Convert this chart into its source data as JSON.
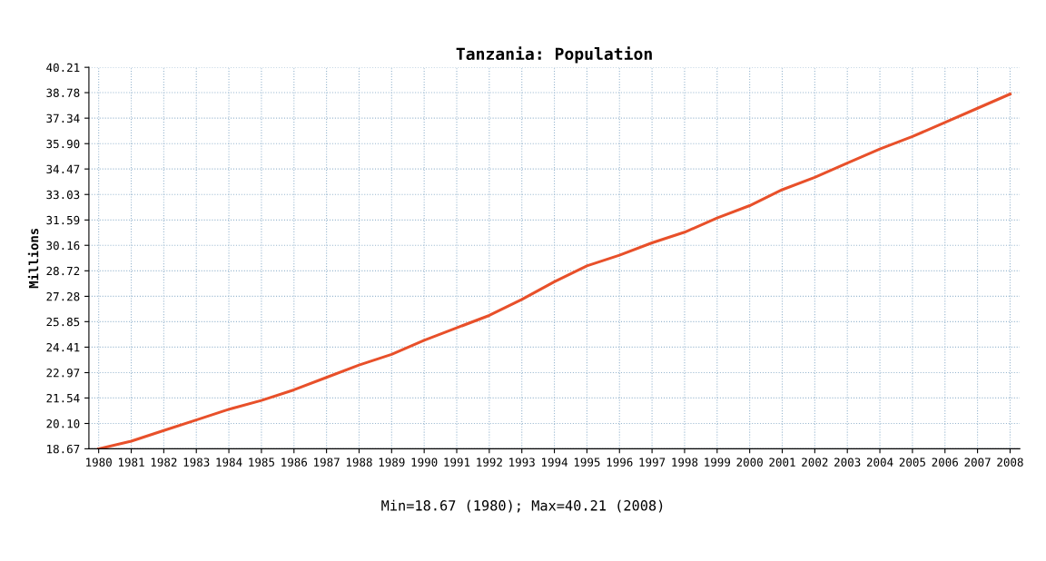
{
  "chart_data": {
    "type": "line",
    "title": "Tanzania: Population",
    "ylabel": "Millions",
    "categories": [
      "1980",
      "1981",
      "1982",
      "1983",
      "1984",
      "1985",
      "1986",
      "1987",
      "1988",
      "1989",
      "1990",
      "1991",
      "1992",
      "1993",
      "1994",
      "1995",
      "1996",
      "1997",
      "1998",
      "1999",
      "2000",
      "2001",
      "2002",
      "2003",
      "2004",
      "2005",
      "2006",
      "2007",
      "2008"
    ],
    "series": [
      {
        "color": "#e8502a",
        "values": [
          18.67,
          19.1,
          19.7,
          20.3,
          20.9,
          21.4,
          22.0,
          22.7,
          23.4,
          24.0,
          24.8,
          25.5,
          26.2,
          27.1,
          28.1,
          29.0,
          29.6,
          30.3,
          30.9,
          31.7,
          32.4,
          33.3,
          34.0,
          34.8,
          35.6,
          36.3,
          37.1,
          37.9,
          38.7
        ]
      }
    ],
    "ylim": [
      18.67,
      40.21
    ],
    "yticks": [
      {
        "value": 18.67,
        "label": "18.67"
      },
      {
        "value": 20.1,
        "label": "20.10"
      },
      {
        "value": 21.54,
        "label": "21.54"
      },
      {
        "value": 22.97,
        "label": "22.97"
      },
      {
        "value": 24.41,
        "label": "24.41"
      },
      {
        "value": 25.85,
        "label": "25.85"
      },
      {
        "value": 27.28,
        "label": "27.28"
      },
      {
        "value": 28.72,
        "label": "28.72"
      },
      {
        "value": 30.16,
        "label": "30.16"
      },
      {
        "value": 31.59,
        "label": "31.59"
      },
      {
        "value": 33.03,
        "label": "33.03"
      },
      {
        "value": 34.47,
        "label": "34.47"
      },
      {
        "value": 35.9,
        "label": "35.90"
      },
      {
        "value": 37.34,
        "label": "37.34"
      },
      {
        "value": 38.78,
        "label": "38.78"
      },
      {
        "value": 40.21,
        "label": "40.21"
      }
    ],
    "grid": true,
    "legend": false,
    "marker": "none",
    "line_style": "solid",
    "annotations": [
      "Min=18.67 (1980); Max=40.21 (2008)"
    ]
  }
}
